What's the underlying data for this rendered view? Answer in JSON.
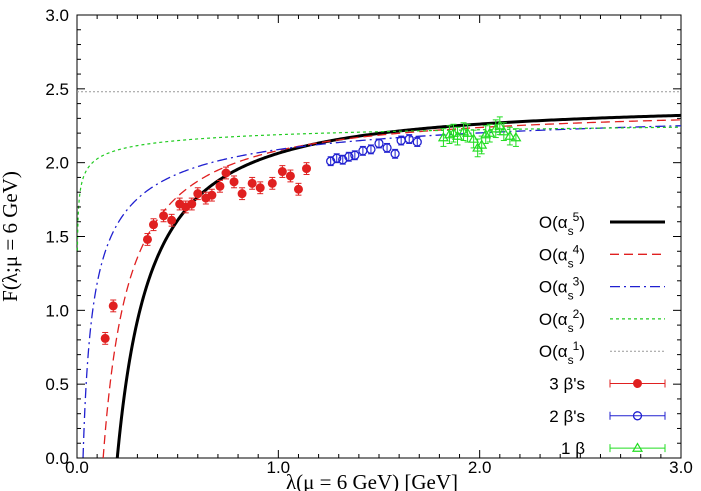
{
  "chart_data": {
    "type": "scatter",
    "xlabel": "λ(μ = 6 GeV) [GeV]",
    "ylabel": "F(λ;μ = 6 GeV)",
    "xlim": [
      0.0,
      3.0
    ],
    "ylim": [
      0.0,
      3.0
    ],
    "xticks": [
      "0.0",
      "1.0",
      "2.0",
      "3.0"
    ],
    "yticks": [
      "0.0",
      "0.5",
      "1.0",
      "1.5",
      "2.0",
      "2.5",
      "3.0"
    ],
    "grid": false,
    "legend_position": "bottom-right",
    "reference_line": {
      "y": 2.48,
      "color": "#999999",
      "style": "dotted"
    },
    "curves": [
      {
        "legend": "O(αs5)",
        "order": "5",
        "color": "#000000",
        "style": "solid",
        "x_min": 0.2,
        "y_at_3": 2.32
      },
      {
        "legend": "O(αs4)",
        "order": "4",
        "color": "#e02020",
        "style": "dashed",
        "x_min": 0.13,
        "y_at_3": 2.29
      },
      {
        "legend": "O(αs3)",
        "order": "3",
        "color": "#2020d0",
        "style": "dashdot",
        "x_min": 0.03,
        "y_at_3": 2.25
      },
      {
        "legend": "O(αs2)",
        "order": "2",
        "color": "#22cc22",
        "style": "dotted",
        "x_min": 0.0,
        "y_at_3": 2.24
      },
      {
        "legend": "O(αs1)",
        "order": "1",
        "color": "#999999",
        "style": "dotted",
        "constant": 2.48
      }
    ],
    "series": [
      {
        "name": "3 β's",
        "color": "#e02020",
        "marker": "filled-circle",
        "x": [
          0.14,
          0.18,
          0.35,
          0.38,
          0.43,
          0.47,
          0.51,
          0.54,
          0.57,
          0.6,
          0.64,
          0.67,
          0.71,
          0.74,
          0.78,
          0.82,
          0.87,
          0.91,
          0.97,
          1.02,
          1.06,
          1.1,
          1.14
        ],
        "y": [
          0.81,
          1.03,
          1.48,
          1.58,
          1.64,
          1.61,
          1.72,
          1.7,
          1.72,
          1.79,
          1.76,
          1.78,
          1.84,
          1.93,
          1.87,
          1.79,
          1.86,
          1.83,
          1.86,
          1.94,
          1.91,
          1.82,
          1.96
        ],
        "yerr": 0.04
      },
      {
        "name": "2 β's",
        "color": "#2020d0",
        "marker": "open-circle",
        "x": [
          1.26,
          1.29,
          1.32,
          1.35,
          1.38,
          1.42,
          1.46,
          1.5,
          1.54,
          1.58,
          1.61,
          1.65,
          1.69
        ],
        "y": [
          2.01,
          2.03,
          2.02,
          2.04,
          2.05,
          2.08,
          2.09,
          2.13,
          2.1,
          2.06,
          2.15,
          2.16,
          2.14
        ],
        "yerr": 0.03
      },
      {
        "name": "1 β",
        "color": "#22dd22",
        "marker": "open-triangle",
        "x": [
          1.82,
          1.85,
          1.87,
          1.89,
          1.92,
          1.94,
          1.97,
          1.99,
          2.01,
          2.03,
          2.05,
          2.08,
          2.1,
          2.12,
          2.15,
          2.18
        ],
        "y": [
          2.17,
          2.19,
          2.2,
          2.18,
          2.21,
          2.2,
          2.16,
          2.1,
          2.12,
          2.19,
          2.2,
          2.23,
          2.25,
          2.21,
          2.18,
          2.17
        ],
        "yerr": 0.06
      }
    ]
  }
}
